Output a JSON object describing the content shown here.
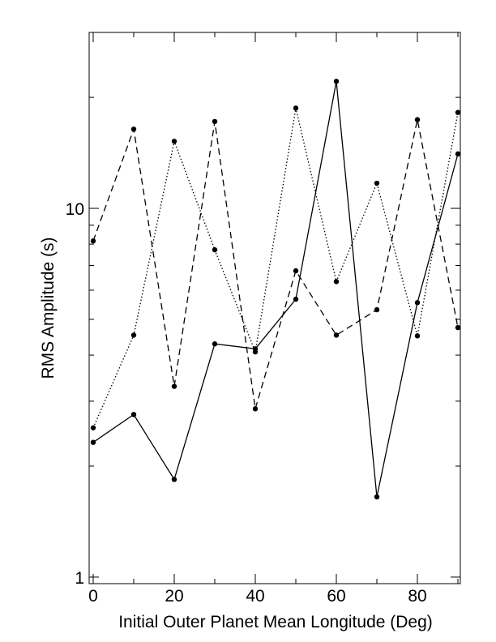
{
  "chart_data": {
    "type": "line",
    "x_label": "Initial Outer Planet Mean Longitude (Deg)",
    "y_label": "RMS Amplitude (s)",
    "x": [
      0,
      10,
      20,
      30,
      40,
      50,
      60,
      70,
      80,
      90
    ],
    "series": [
      {
        "color": "#000000",
        "dash": "solid",
        "values": [
          2.32,
          2.76,
          1.84,
          4.29,
          4.16,
          5.67,
          22.1,
          1.65,
          5.55,
          14.05
        ]
      },
      {
        "color": "#000000",
        "dash": "dashed",
        "values": [
          8.16,
          16.4,
          3.29,
          17.2,
          2.86,
          6.77,
          4.53,
          5.31,
          17.4,
          4.75
        ]
      },
      {
        "color": "#000000",
        "dash": "dotted",
        "values": [
          2.54,
          4.53,
          15.2,
          7.72,
          4.08,
          18.7,
          6.33,
          11.7,
          4.51,
          18.2
        ]
      }
    ],
    "xlim": [
      -1,
      90.6
    ],
    "ylim": [
      0.96,
      30
    ],
    "ylog": true,
    "xticks": [
      0,
      20,
      40,
      60,
      80
    ],
    "xminor_ticks": [
      10,
      30,
      50,
      70,
      90
    ],
    "yticks": [
      1,
      10
    ],
    "yminor_ticks": [
      2,
      3,
      4,
      5,
      6,
      7,
      8,
      9,
      20,
      30
    ]
  }
}
